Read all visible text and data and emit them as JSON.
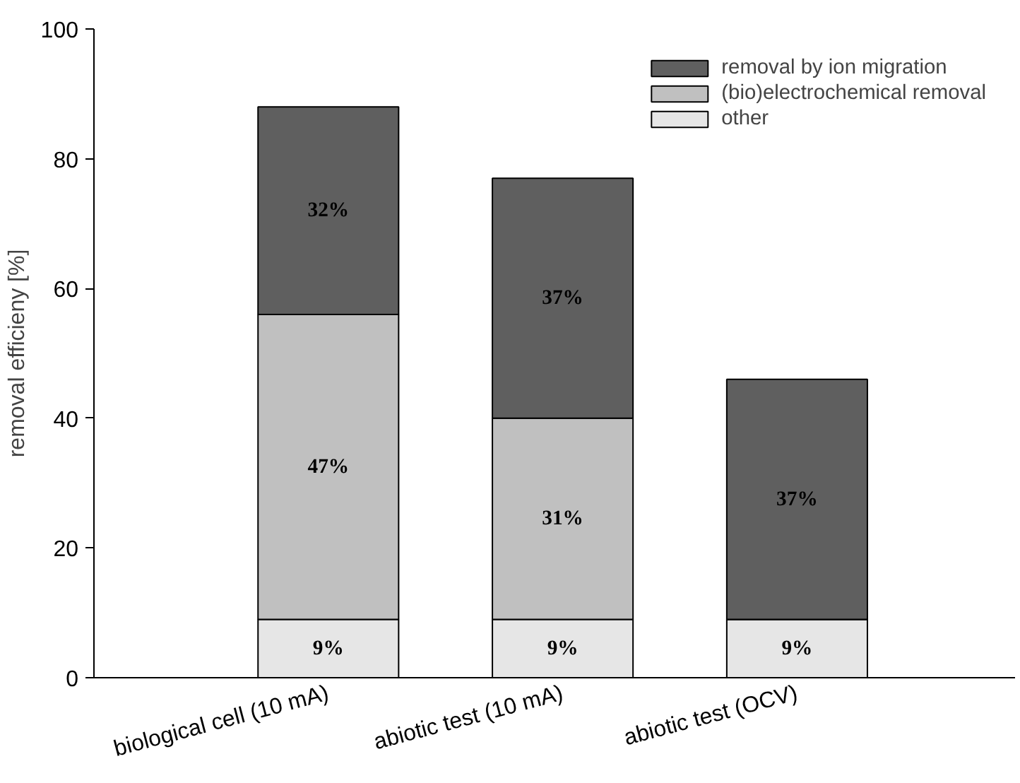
{
  "chart_data": {
    "type": "bar",
    "stacked": true,
    "ylabel": "removal efficieny [%]",
    "categories": [
      "biological cell (10 mA)",
      "abiotic test (10 mA)",
      "abiotic test (OCV)"
    ],
    "ylim": [
      0,
      100
    ],
    "yticks": [
      0,
      20,
      40,
      60,
      80,
      100
    ],
    "grid": false,
    "legend": "top right",
    "series": [
      {
        "name": "other",
        "color": "#e6e6e6",
        "values": [
          9,
          9,
          9
        ],
        "value_labels": [
          "9%",
          "9%",
          "9%"
        ]
      },
      {
        "name": "(bio)electrochemical removal",
        "color": "#c0c0c0",
        "values": [
          47,
          31,
          0
        ],
        "value_labels": [
          "47%",
          "31%",
          null
        ]
      },
      {
        "name": "removal by ion migration",
        "color": "#5f5f5f",
        "values": [
          32,
          37,
          37
        ],
        "value_labels": [
          "32%",
          "37%",
          "37%"
        ]
      }
    ]
  }
}
